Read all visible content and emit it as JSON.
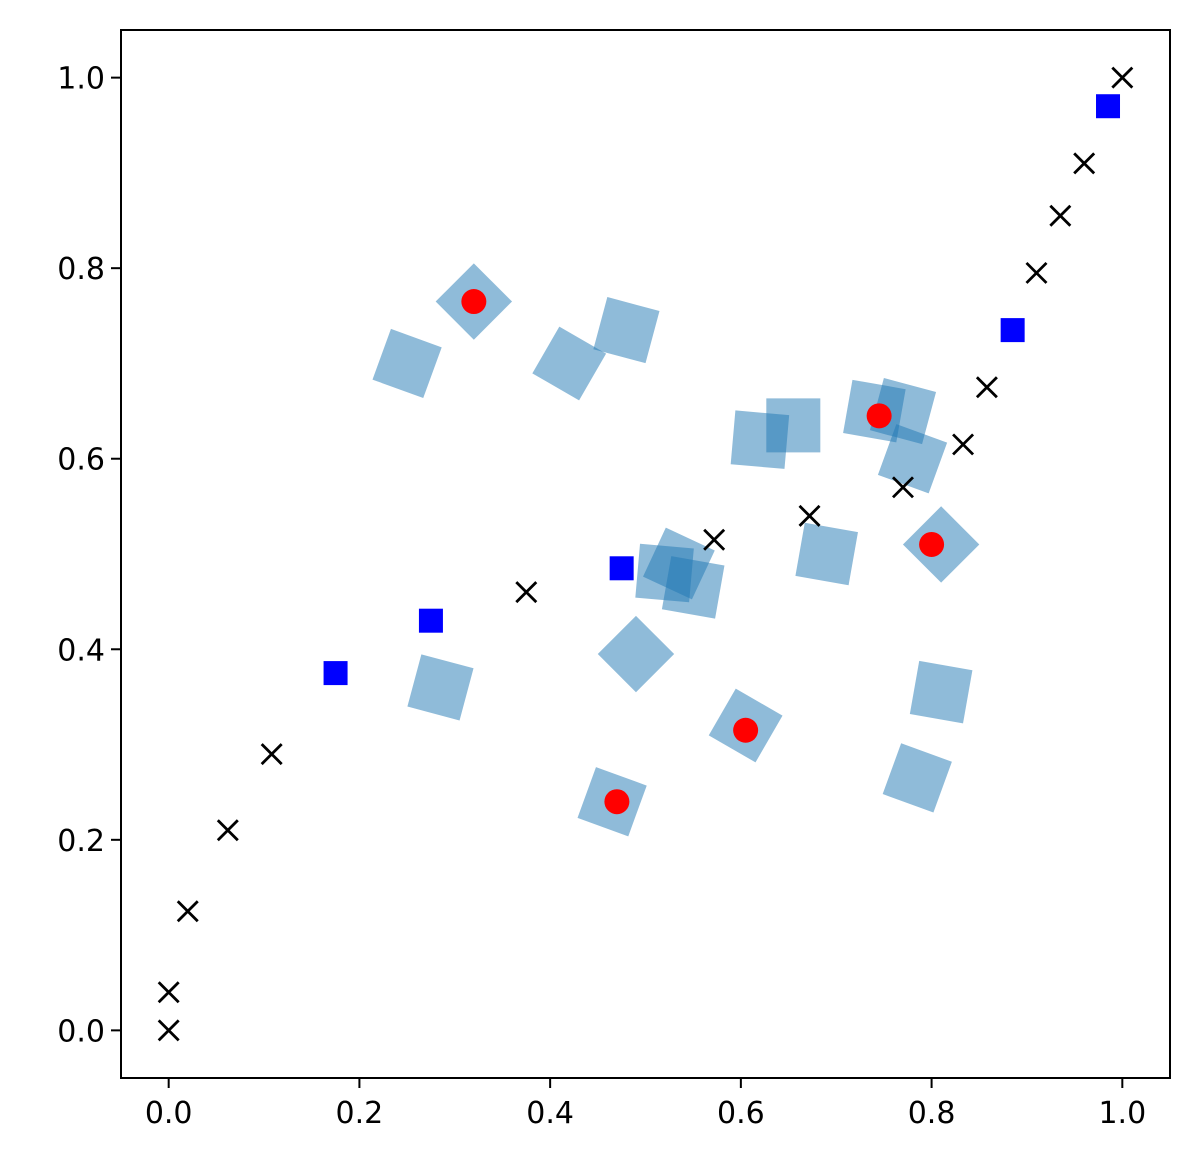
{
  "chart_data": {
    "type": "scatter",
    "title": "",
    "xlabel": "",
    "ylabel": "",
    "xlim": [
      -0.05,
      1.05
    ],
    "ylim": [
      -0.05,
      1.05
    ],
    "grid": false,
    "x_ticks": [
      "0.0",
      "0.2",
      "0.4",
      "0.6",
      "0.8",
      "1.0"
    ],
    "y_ticks": [
      "0.0",
      "0.2",
      "0.4",
      "0.6",
      "0.8",
      "1.0"
    ],
    "x_tick_values": [
      0.0,
      0.2,
      0.4,
      0.6,
      0.8,
      1.0
    ],
    "y_tick_values": [
      0.0,
      0.2,
      0.4,
      0.6,
      0.8,
      1.0
    ],
    "colors": {
      "light_squares": "#1f77b4",
      "blue_squares": "#0000ff",
      "red_dots": "#ff0000",
      "crosses": "#000000"
    },
    "series": [
      {
        "marker": "rotated-square",
        "color": "#1f77b4",
        "opacity": 0.5,
        "points": [
          {
            "x": 0.25,
            "y": 0.7,
            "angle": 20
          },
          {
            "x": 0.32,
            "y": 0.765,
            "angle": 45
          },
          {
            "x": 0.42,
            "y": 0.7,
            "angle": 30
          },
          {
            "x": 0.48,
            "y": 0.735,
            "angle": 15
          },
          {
            "x": 0.62,
            "y": 0.62,
            "angle": 5
          },
          {
            "x": 0.655,
            "y": 0.635,
            "angle": 0
          },
          {
            "x": 0.74,
            "y": 0.65,
            "angle": 10
          },
          {
            "x": 0.77,
            "y": 0.65,
            "angle": 15
          },
          {
            "x": 0.78,
            "y": 0.6,
            "angle": 20
          },
          {
            "x": 0.81,
            "y": 0.51,
            "angle": 45
          },
          {
            "x": 0.69,
            "y": 0.5,
            "angle": 10
          },
          {
            "x": 0.535,
            "y": 0.49,
            "angle": 25
          },
          {
            "x": 0.52,
            "y": 0.48,
            "angle": 5
          },
          {
            "x": 0.55,
            "y": 0.465,
            "angle": 10
          },
          {
            "x": 0.49,
            "y": 0.395,
            "angle": 45
          },
          {
            "x": 0.285,
            "y": 0.36,
            "angle": 15
          },
          {
            "x": 0.81,
            "y": 0.355,
            "angle": 10
          },
          {
            "x": 0.785,
            "y": 0.265,
            "angle": 20
          },
          {
            "x": 0.605,
            "y": 0.32,
            "angle": 30
          },
          {
            "x": 0.465,
            "y": 0.24,
            "angle": 20
          }
        ]
      },
      {
        "marker": "square",
        "color": "#0000ff",
        "points": [
          {
            "x": 0.175,
            "y": 0.375
          },
          {
            "x": 0.275,
            "y": 0.43
          },
          {
            "x": 0.475,
            "y": 0.485
          },
          {
            "x": 0.885,
            "y": 0.735
          },
          {
            "x": 0.985,
            "y": 0.97
          }
        ]
      },
      {
        "marker": "circle",
        "color": "#ff0000",
        "points": [
          {
            "x": 0.32,
            "y": 0.765
          },
          {
            "x": 0.745,
            "y": 0.645
          },
          {
            "x": 0.8,
            "y": 0.51
          },
          {
            "x": 0.605,
            "y": 0.315
          },
          {
            "x": 0.47,
            "y": 0.24
          }
        ]
      },
      {
        "marker": "x",
        "color": "#000000",
        "points": [
          {
            "x": 0.0,
            "y": 0.0
          },
          {
            "x": 0.0,
            "y": 0.04
          },
          {
            "x": 0.02,
            "y": 0.125
          },
          {
            "x": 0.062,
            "y": 0.21
          },
          {
            "x": 0.108,
            "y": 0.29
          },
          {
            "x": 0.375,
            "y": 0.46
          },
          {
            "x": 0.572,
            "y": 0.515
          },
          {
            "x": 0.672,
            "y": 0.54
          },
          {
            "x": 0.77,
            "y": 0.57
          },
          {
            "x": 0.833,
            "y": 0.615
          },
          {
            "x": 0.858,
            "y": 0.675
          },
          {
            "x": 0.91,
            "y": 0.795
          },
          {
            "x": 0.935,
            "y": 0.855
          },
          {
            "x": 0.96,
            "y": 0.91
          },
          {
            "x": 1.0,
            "y": 1.0
          }
        ]
      }
    ]
  }
}
